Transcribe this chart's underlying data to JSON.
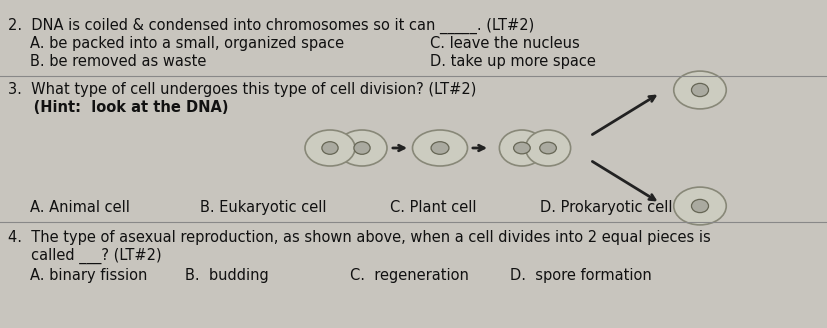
{
  "bg_color": "#c8c5be",
  "text_color": "#111111",
  "fig_width": 8.28,
  "fig_height": 3.28,
  "dpi": 100,
  "q2": {
    "main": "2.  DNA is coiled & condensed into chromosomes so it can _____. (LT#2)",
    "A": "A. be packed into a small, organized space",
    "B": "B. be removed as waste",
    "C": "C. leave the nucleus",
    "D": "D. take up more space"
  },
  "q3": {
    "main": "3.  What type of cell undergoes this type of cell division? (LT#2)",
    "hint": "     (Hint:  look at the DNA)",
    "A": "A. Animal cell",
    "B": "B. Eukaryotic cell",
    "C": "C. Plant cell",
    "D": "D. Prokaryotic cell"
  },
  "q4": {
    "main": "4.  The type of asexual reproduction, as shown above, when a cell divides into 2 equal pieces is",
    "main2": "     called ___? (LT#2)",
    "A": "A. binary fission",
    "B": "B.  budding",
    "C": "C.  regeneration",
    "D": "D.  spore formation"
  },
  "cell_outer_fc": "#ccccc0",
  "cell_outer_ec": "#888878",
  "cell_inner_fc": "#aaaaA0",
  "cell_inner_ec": "#666655",
  "arrow_color": "#222222",
  "divider_color": "#888888"
}
